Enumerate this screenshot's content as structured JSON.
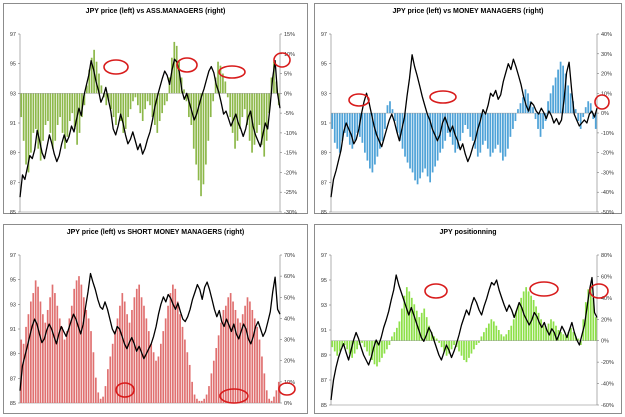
{
  "chart_data": [
    {
      "type": "bar+line",
      "title": "JPY price (left) vs ASS.MANAGERS (right)",
      "left_axis": {
        "ticks": [
          "85",
          "87",
          "89",
          "91",
          "93",
          "95",
          "97"
        ],
        "range": [
          85,
          97
        ]
      },
      "right_axis": {
        "ticks": [
          "-30%",
          "-25%",
          "-20%",
          "-15%",
          "-10%",
          "-5%",
          "0%",
          "5%",
          "10%",
          "15%"
        ],
        "range": [
          -30,
          15
        ]
      },
      "series": [
        {
          "axis": "right",
          "style": "bars",
          "color": "#8db84a",
          "values": [
            -6,
            -12,
            -18,
            -20,
            -15,
            -10,
            -9,
            -14,
            -17,
            -12,
            -8,
            -7,
            -10,
            -14,
            -12,
            -8,
            -6,
            -10,
            -14,
            -11,
            -7,
            -5,
            -9,
            -13,
            -10,
            -6,
            -3,
            2,
            6,
            9,
            11,
            8,
            5,
            2,
            -1,
            -3,
            -2,
            -4,
            -6,
            -8,
            -5,
            -7,
            -10,
            -9,
            -6,
            -4,
            -2,
            -1,
            -3,
            -5,
            -7,
            -4,
            -2,
            -3,
            -6,
            -8,
            -10,
            -7,
            -5,
            -3,
            -2,
            4,
            9,
            13,
            12,
            8,
            4,
            1,
            -2,
            -6,
            -8,
            -14,
            -18,
            -22,
            -26,
            -23,
            -18,
            -12,
            -6,
            -2,
            4,
            8,
            7,
            5,
            3,
            -1,
            -6,
            -10,
            -14,
            -12,
            -9,
            -6,
            -4,
            -8,
            -12,
            -15,
            -13,
            -10,
            -8,
            -13,
            -16,
            -12,
            -5,
            4,
            8,
            3,
            -3
          ]
        },
        {
          "axis": "left",
          "style": "line",
          "color": "#000000",
          "values": [
            86,
            87.5,
            87.2,
            88,
            88.8,
            88.6,
            89.2,
            90.5,
            89.8,
            89,
            88.6,
            89.4,
            90.2,
            89.6,
            88.9,
            88.4,
            88.8,
            89.6,
            90.2,
            89.7,
            90.1,
            90.8,
            90.4,
            91.2,
            92,
            91.5,
            92.8,
            93.5,
            94.2,
            95.2,
            94.6,
            93.8,
            93.2,
            92.4,
            92.8,
            93.4,
            92.6,
            91.8,
            90.6,
            90.2,
            90.8,
            91.6,
            91,
            90.2,
            89.6,
            89.9,
            90.4,
            89.8,
            89.2,
            89.6,
            88.9,
            89.3,
            89.9,
            90.4,
            91.2,
            92.1,
            92.8,
            93.4,
            94,
            94.5,
            94.2,
            93.6,
            94.6,
            95.3,
            95.1,
            94.4,
            93.2,
            92.6,
            93,
            92.4,
            91.8,
            91.2,
            91.6,
            92.2,
            92.8,
            93.3,
            93.9,
            94.5,
            94.8,
            94.4,
            93.6,
            93.1,
            92.4,
            91.6,
            91.8,
            91.3,
            90.8,
            91.2,
            91.6,
            91,
            90.6,
            90.1,
            90.6,
            91.4,
            91.8,
            90.8,
            90.2,
            89.8,
            89.4,
            90.2,
            91,
            90.6,
            92.2,
            94,
            95.2,
            93,
            92
          ]
        }
      ],
      "annotations": "red ellipses"
    },
    {
      "type": "bar+line",
      "title": "JPY price (left) vs MONEY MANAGERS (right)",
      "left_axis": {
        "ticks": [
          "85",
          "87",
          "89",
          "91",
          "93",
          "95",
          "97"
        ],
        "range": [
          85,
          97
        ]
      },
      "right_axis": {
        "ticks": [
          "-50%",
          "-40%",
          "-30%",
          "-20%",
          "-10%",
          "0%",
          "10%",
          "20%",
          "30%",
          "40%"
        ],
        "range": [
          -50,
          40
        ]
      },
      "series": [
        {
          "axis": "right",
          "style": "bars",
          "color": "#4fa3d8",
          "values": [
            -8,
            -15,
            -18,
            -20,
            -14,
            -10,
            -12,
            -16,
            -18,
            -14,
            -10,
            -12,
            -15,
            -20,
            -24,
            -28,
            -30,
            -26,
            -22,
            -18,
            -14,
            -8,
            4,
            6,
            2,
            -4,
            -10,
            -14,
            -18,
            -22,
            -25,
            -28,
            -30,
            -34,
            -36,
            -33,
            -30,
            -28,
            -32,
            -35,
            -30,
            -27,
            -24,
            -20,
            -18,
            -14,
            -10,
            -12,
            -16,
            -20,
            -18,
            -14,
            -10,
            -6,
            -8,
            -12,
            -14,
            -18,
            -22,
            -20,
            -16,
            -14,
            -18,
            -22,
            -20,
            -18,
            -16,
            -20,
            -24,
            -22,
            -18,
            -12,
            -8,
            -4,
            2,
            5,
            8,
            12,
            10,
            6,
            3,
            -3,
            -8,
            -12,
            -8,
            -4,
            6,
            10,
            14,
            18,
            22,
            26,
            24,
            20,
            14,
            10,
            6,
            2,
            -4,
            -8,
            -2,
            3,
            6,
            5,
            -3,
            -8
          ]
        },
        {
          "axis": "left",
          "style": "line",
          "color": "#000000",
          "values": [
            86,
            87.2,
            87.8,
            88.5,
            89.2,
            90.4,
            91,
            90.6,
            90.2,
            89.6,
            89.9,
            90.6,
            91.6,
            92.4,
            93,
            92.4,
            91.6,
            90.8,
            90.2,
            89.8,
            89.4,
            90,
            90.6,
            91.2,
            91.6,
            91.1,
            90.4,
            89.8,
            90.6,
            91.4,
            92.8,
            94,
            95.6,
            94.8,
            94.2,
            93.5,
            92.8,
            92.2,
            91.6,
            91.2,
            90.6,
            90.2,
            89.8,
            90.2,
            91,
            91.4,
            90.9,
            90.4,
            90.8,
            90.2,
            89.8,
            89.2,
            89.6,
            88.9,
            88.4,
            88.8,
            89.4,
            89.9,
            90.6,
            91.2,
            91.9,
            91.6,
            92.2,
            93,
            92.8,
            93.2,
            92.6,
            92.9,
            93.8,
            94.4,
            95,
            94.6,
            95.3,
            94.8,
            94.2,
            93.6,
            92.8,
            92.2,
            91.8,
            92.4,
            92.2,
            91.8,
            91.6,
            92,
            91.7,
            91.3,
            91.8,
            91.5,
            91,
            91.3,
            90.9,
            91.2,
            92.6,
            94.4,
            95.1,
            93.2,
            91.6,
            91.2,
            90.8,
            91,
            91.2,
            91,
            91.6,
            91.8,
            91.4,
            92
          ]
        }
      ],
      "annotations": "red ellipses"
    },
    {
      "type": "bar+line",
      "title": "JPY price (left) vs SHORT MONEY MANAGERS (right)",
      "left_axis": {
        "ticks": [
          "85",
          "87",
          "89",
          "91",
          "93",
          "95",
          "97"
        ],
        "range": [
          85,
          97
        ]
      },
      "right_axis": {
        "ticks": [
          "0%",
          "10%",
          "20%",
          "30%",
          "40%",
          "50%",
          "60%",
          "70%"
        ],
        "range": [
          0,
          70
        ]
      },
      "series": [
        {
          "axis": "right",
          "style": "bars",
          "color": "#e07070",
          "values": [
            30,
            28,
            36,
            42,
            48,
            52,
            58,
            55,
            48,
            42,
            38,
            44,
            50,
            56,
            52,
            46,
            40,
            36,
            30,
            34,
            40,
            46,
            54,
            58,
            60,
            56,
            50,
            44,
            40,
            34,
            24,
            12,
            5,
            2,
            3,
            8,
            16,
            22,
            28,
            34,
            40,
            46,
            52,
            48,
            42,
            38,
            44,
            50,
            54,
            56,
            50,
            46,
            40,
            34,
            28,
            24,
            20,
            22,
            28,
            34,
            40,
            46,
            52,
            56,
            54,
            48,
            42,
            36,
            30,
            24,
            18,
            10,
            4,
            2,
            1,
            1,
            2,
            4,
            8,
            14,
            20,
            26,
            32,
            38,
            44,
            46,
            50,
            52,
            48,
            44,
            40,
            38,
            42,
            46,
            50,
            48,
            44,
            40,
            36,
            30,
            22,
            14,
            6,
            2,
            1,
            3,
            6,
            10
          ]
        },
        {
          "axis": "left",
          "style": "line",
          "color": "#000000",
          "values": [
            86,
            88,
            88.8,
            89.6,
            90.4,
            91.2,
            91.8,
            91.4,
            90.6,
            89.9,
            90.2,
            90.9,
            91.4,
            91,
            90.4,
            89.8,
            90.6,
            91.2,
            90.8,
            90.4,
            91,
            91.6,
            92.2,
            91.8,
            91.2,
            90.6,
            91.4,
            92.8,
            94,
            95.5,
            94.8,
            94.2,
            93.4,
            92.8,
            92.6,
            93.2,
            92.6,
            91.8,
            91,
            90.6,
            91.2,
            91,
            90.4,
            89.8,
            89.4,
            89.9,
            90.3,
            89.8,
            89.2,
            89.6,
            89.1,
            88.6,
            89,
            89.4,
            89.8,
            90.4,
            91.2,
            92.2,
            93,
            93.6,
            93.2,
            93.8,
            93.5,
            93,
            92.6,
            93.1,
            92.4,
            91.8,
            91.6,
            92,
            92.6,
            93.4,
            94,
            94.6,
            94.2,
            93.4,
            94.4,
            94.8,
            94.2,
            93.4,
            92.6,
            92,
            92.5,
            91.6,
            91.2,
            91.8,
            91.3,
            90.8,
            91.4,
            90.6,
            90.2,
            90.8,
            91.4,
            91,
            90.2,
            89.8,
            90.4,
            91.2,
            91.6,
            91,
            90.4,
            90.8,
            91.6,
            92.4,
            94,
            95.2,
            92.6,
            92.2
          ]
        }
      ],
      "annotations": "red ellipses"
    },
    {
      "type": "bar+line",
      "title": "JPY positionning",
      "left_axis": {
        "ticks": [
          "85",
          "87",
          "89",
          "91",
          "93",
          "95",
          "97"
        ],
        "range": [
          85,
          97
        ]
      },
      "right_axis": {
        "ticks": [
          "-60%",
          "-40%",
          "-20%",
          "0%",
          "20%",
          "40%",
          "60%",
          "80%"
        ],
        "range": [
          -60,
          80
        ]
      },
      "series": [
        {
          "axis": "right",
          "style": "bars",
          "color": "#8ee04a",
          "values": [
            -6,
            -10,
            -14,
            -10,
            -6,
            -4,
            -8,
            -12,
            -16,
            -12,
            -8,
            -4,
            -2,
            -6,
            -10,
            -14,
            -18,
            -22,
            -24,
            -20,
            -16,
            -12,
            -8,
            -4,
            4,
            8,
            12,
            18,
            30,
            42,
            50,
            46,
            40,
            34,
            28,
            22,
            26,
            30,
            22,
            14,
            8,
            4,
            2,
            -2,
            -6,
            -10,
            -14,
            -12,
            -8,
            -4,
            -6,
            -10,
            -14,
            -18,
            -20,
            -16,
            -12,
            -8,
            -4,
            -2,
            4,
            8,
            12,
            16,
            20,
            18,
            14,
            10,
            6,
            4,
            6,
            10,
            14,
            20,
            28,
            34,
            40,
            46,
            50,
            46,
            42,
            38,
            32,
            26,
            20,
            14,
            12,
            16,
            20,
            18,
            14,
            10,
            8,
            6,
            4,
            8,
            12,
            8,
            4,
            2,
            -4,
            20,
            36,
            48,
            52,
            40,
            22
          ]
        },
        {
          "axis": "left",
          "style": "line",
          "color": "#000000",
          "values": [
            85.4,
            87,
            88,
            88.8,
            89.4,
            89.9,
            89.2,
            88.6,
            89.4,
            90.2,
            90.8,
            90.3,
            89.6,
            89,
            88.6,
            88.2,
            88.8,
            89.6,
            90.2,
            89.8,
            90.4,
            91.2,
            91.8,
            92.5,
            93.4,
            94.2,
            95.4,
            94.6,
            94,
            93.4,
            92.8,
            92.2,
            92.8,
            92.2,
            91.6,
            91,
            90.4,
            90.1,
            90.6,
            91.2,
            90.8,
            90.2,
            89.6,
            89,
            88.6,
            89.2,
            89.8,
            89.4,
            88.8,
            89.3,
            89.9,
            90.6,
            91.4,
            92,
            92.6,
            92.2,
            93,
            93.6,
            93.2,
            92.6,
            92.2,
            92.9,
            93.5,
            94.2,
            94.8,
            94.6,
            95,
            94.2,
            93.6,
            93,
            92.5,
            93,
            92.6,
            92,
            92.6,
            93.2,
            92.8,
            92.2,
            91.8,
            91.4,
            91.8,
            92.4,
            92.1,
            91.6,
            91.2,
            91.6,
            91,
            90.6,
            91.1,
            90.8,
            90.2,
            90.7,
            91.3,
            90.9,
            90.4,
            91,
            91.6,
            90.8,
            90.2,
            89.8,
            90.6,
            91.4,
            92.8,
            94.2,
            95.2,
            92.4,
            92
          ]
        }
      ],
      "annotations": "red ellipses"
    }
  ]
}
